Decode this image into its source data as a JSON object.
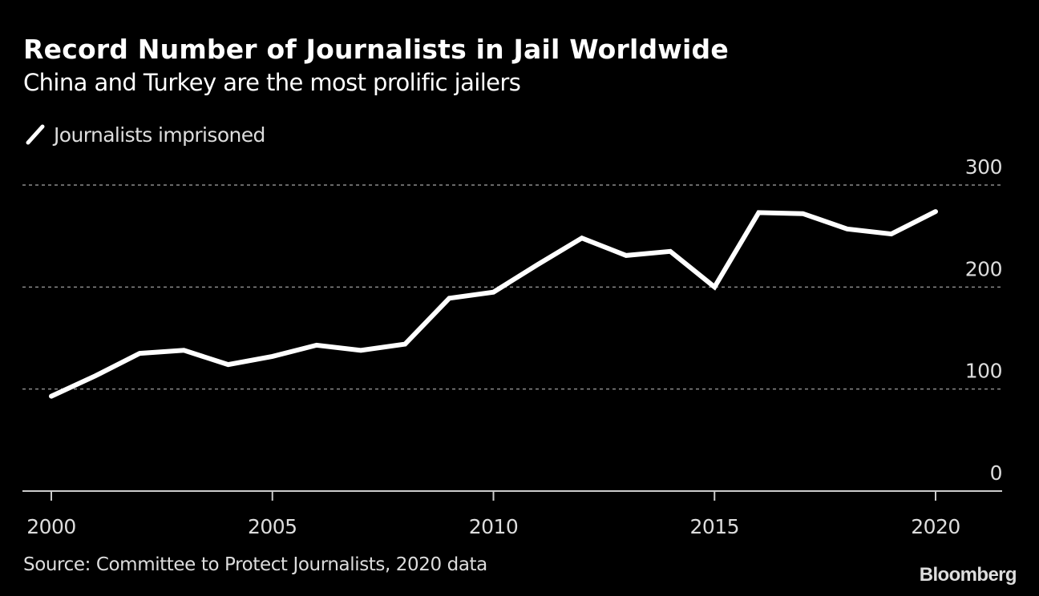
{
  "chart_data": {
    "type": "line",
    "title": "Record Number of Journalists in Jail Worldwide",
    "subtitle": "China and Turkey are the most prolific jailers",
    "xlabel": "",
    "ylabel": "",
    "xlim": [
      1999.6,
      2021.5
    ],
    "ylim": [
      0,
      300
    ],
    "x_ticks": [
      2000,
      2005,
      2010,
      2015,
      2020
    ],
    "x_tick_labels": [
      "2000",
      "2005",
      "2010",
      "2015",
      "2020"
    ],
    "y_ticks": [
      0,
      100,
      200,
      300
    ],
    "y_tick_labels": [
      "0",
      "100",
      "200",
      "300"
    ],
    "grid": true,
    "legend_position": "top-left",
    "series": [
      {
        "name": "Journalists imprisoned",
        "color": "#ffffff",
        "x": [
          2000,
          2001,
          2002,
          2003,
          2004,
          2005,
          2006,
          2007,
          2008,
          2009,
          2010,
          2011,
          2012,
          2013,
          2014,
          2015,
          2016,
          2017,
          2018,
          2019,
          2020
        ],
        "values": [
          93,
          113,
          135,
          138,
          124,
          132,
          143,
          138,
          144,
          189,
          195,
          222,
          248,
          231,
          235,
          200,
          273,
          272,
          257,
          252,
          274
        ]
      }
    ],
    "source": "Source: Committee to Protect Journalists, 2020 data"
  },
  "branding": {
    "logo": "Bloomberg"
  },
  "colors": {
    "background": "#000000",
    "line": "#ffffff",
    "grid": "#8a8a8a",
    "axis": "#cccccc"
  }
}
